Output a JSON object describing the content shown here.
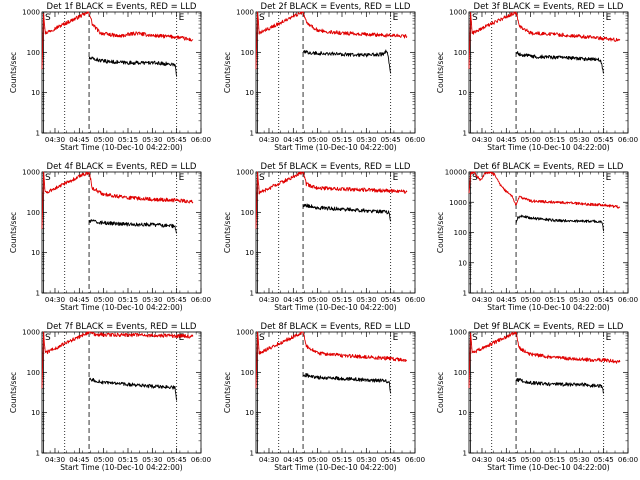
{
  "colors": {
    "events": "#000000",
    "lld": "#e00000",
    "frame": "#000000"
  },
  "x_ticks": [
    "04:30",
    "04:45",
    "05:00",
    "05:15",
    "05:30",
    "05:45",
    "06:00"
  ],
  "x_label": "Start Time (10-Dec-10 04:22:00)",
  "y_label": "Counts/sec",
  "markers": {
    "start": "S",
    "end": "E"
  },
  "chart_data": [
    {
      "type": "line",
      "title": "Det 1f BLACK = Events, RED = LLD",
      "y_scale": "log",
      "ylim": [
        1,
        1000
      ],
      "y_ticks": [
        "1",
        "10",
        "100",
        "1000"
      ],
      "x_range": [
        "04:22",
        "06:00"
      ],
      "vlines": {
        "dotted": [
          "04:36",
          "05:45"
        ],
        "dashed": [
          "04:51"
        ]
      },
      "series": [
        {
          "role": "lld",
          "x": [
            "04:22",
            "04:23",
            "04:24",
            "04:51",
            "04:53",
            "04:58",
            "05:10",
            "05:20",
            "05:30",
            "05:45",
            "05:55"
          ],
          "y": [
            40,
            1000,
            300,
            1000,
            500,
            300,
            250,
            300,
            260,
            240,
            200
          ]
        },
        {
          "role": "events",
          "x": [
            "04:51",
            "04:53",
            "05:00",
            "05:15",
            "05:30",
            "05:44",
            "05:45"
          ],
          "y": [
            70,
            70,
            60,
            55,
            55,
            50,
            25
          ]
        }
      ]
    },
    {
      "type": "line",
      "title": "Det 2f BLACK = Events, RED = LLD",
      "y_scale": "log",
      "ylim": [
        1,
        1000
      ],
      "y_ticks": [
        "1",
        "10",
        "100",
        "1000"
      ],
      "x_range": [
        "04:22",
        "06:00"
      ],
      "vlines": {
        "dotted": [
          "04:36",
          "05:45"
        ],
        "dashed": [
          "04:51"
        ]
      },
      "series": [
        {
          "role": "lld",
          "x": [
            "04:22",
            "04:23",
            "04:24",
            "04:51",
            "04:53",
            "05:00",
            "05:15",
            "05:30",
            "05:45",
            "05:55"
          ],
          "y": [
            40,
            1000,
            300,
            1000,
            550,
            350,
            300,
            280,
            260,
            250
          ]
        },
        {
          "role": "events",
          "x": [
            "04:51",
            "04:53",
            "05:00",
            "05:15",
            "05:30",
            "05:40",
            "05:43",
            "05:45"
          ],
          "y": [
            100,
            100,
            95,
            90,
            85,
            90,
            110,
            30
          ]
        }
      ]
    },
    {
      "type": "line",
      "title": "Det 3f BLACK = Events, RED = LLD",
      "y_scale": "log",
      "ylim": [
        1,
        1000
      ],
      "y_ticks": [
        "1",
        "10",
        "100",
        "1000"
      ],
      "x_range": [
        "04:22",
        "06:00"
      ],
      "vlines": {
        "dotted": [
          "04:36",
          "05:45"
        ],
        "dashed": [
          "04:51"
        ]
      },
      "series": [
        {
          "role": "lld",
          "x": [
            "04:22",
            "04:23",
            "04:24",
            "04:51",
            "04:53",
            "05:00",
            "05:15",
            "05:30",
            "05:45",
            "05:55"
          ],
          "y": [
            40,
            1000,
            300,
            1000,
            450,
            300,
            280,
            250,
            220,
            200
          ]
        },
        {
          "role": "events",
          "x": [
            "04:51",
            "04:53",
            "05:00",
            "05:15",
            "05:30",
            "05:43",
            "05:45"
          ],
          "y": [
            100,
            90,
            80,
            75,
            70,
            65,
            30
          ]
        }
      ]
    },
    {
      "type": "line",
      "title": "Det 4f BLACK = Events, RED = LLD",
      "y_scale": "log",
      "ylim": [
        1,
        1000
      ],
      "y_ticks": [
        "1",
        "10",
        "100",
        "1000"
      ],
      "x_range": [
        "04:22",
        "06:00"
      ],
      "vlines": {
        "dotted": [
          "04:36",
          "05:45"
        ],
        "dashed": [
          "04:51"
        ]
      },
      "series": [
        {
          "role": "lld",
          "x": [
            "04:22",
            "04:23",
            "04:24",
            "04:51",
            "04:53",
            "05:00",
            "05:15",
            "05:30",
            "05:45",
            "05:55"
          ],
          "y": [
            40,
            1000,
            300,
            1000,
            400,
            280,
            230,
            210,
            200,
            180
          ]
        },
        {
          "role": "events",
          "x": [
            "04:51",
            "04:53",
            "05:00",
            "05:15",
            "05:30",
            "05:44",
            "05:45"
          ],
          "y": [
            60,
            60,
            55,
            50,
            50,
            45,
            30
          ]
        }
      ]
    },
    {
      "type": "line",
      "title": "Det 5f BLACK = Events, RED = LLD",
      "y_scale": "log",
      "ylim": [
        1,
        1000
      ],
      "y_ticks": [
        "1",
        "10",
        "100",
        "1000"
      ],
      "x_range": [
        "04:22",
        "06:00"
      ],
      "vlines": {
        "dotted": [
          "04:36",
          "05:45"
        ],
        "dashed": [
          "04:51"
        ]
      },
      "series": [
        {
          "role": "lld",
          "x": [
            "04:22",
            "04:23",
            "04:24",
            "04:51",
            "04:53",
            "05:00",
            "05:15",
            "05:30",
            "05:45",
            "05:55"
          ],
          "y": [
            40,
            1000,
            300,
            1000,
            500,
            400,
            380,
            360,
            340,
            320
          ]
        },
        {
          "role": "events",
          "x": [
            "04:51",
            "04:53",
            "05:00",
            "05:15",
            "05:30",
            "05:44",
            "05:45"
          ],
          "y": [
            150,
            150,
            130,
            120,
            110,
            100,
            60
          ]
        }
      ]
    },
    {
      "type": "line",
      "title": "Det 6f BLACK = Events, RED = LLD",
      "y_scale": "log",
      "ylim": [
        1,
        10000
      ],
      "y_ticks": [
        "1",
        "10",
        "100",
        "1000",
        "10000"
      ],
      "x_range": [
        "04:22",
        "06:00"
      ],
      "vlines": {
        "dotted": [
          "04:36",
          "05:45"
        ],
        "dashed": [
          "04:51"
        ]
      },
      "series": [
        {
          "role": "lld",
          "x": [
            "04:22",
            "04:23",
            "04:25",
            "04:27",
            "04:29",
            "04:32",
            "04:35",
            "04:38",
            "04:41",
            "04:44",
            "04:47",
            "04:49",
            "04:51",
            "04:53",
            "05:00",
            "05:15",
            "05:30",
            "05:45",
            "05:55"
          ],
          "y": [
            2000,
            9000,
            10000,
            7000,
            5500,
            9000,
            10000,
            8000,
            4000,
            2500,
            1800,
            1500,
            800,
            1500,
            1100,
            1000,
            900,
            800,
            700
          ]
        },
        {
          "role": "events",
          "x": [
            "04:51",
            "04:52",
            "04:55",
            "05:00",
            "05:15",
            "05:30",
            "05:44",
            "05:45"
          ],
          "y": [
            200,
            300,
            350,
            300,
            250,
            240,
            230,
            110
          ]
        }
      ]
    },
    {
      "type": "line",
      "title": "Det 7f BLACK = Events, RED = LLD",
      "y_scale": "log",
      "ylim": [
        1,
        1000
      ],
      "y_ticks": [
        "1",
        "10",
        "100",
        "1000"
      ],
      "x_range": [
        "04:22",
        "06:00"
      ],
      "vlines": {
        "dotted": [
          "04:36",
          "05:45"
        ],
        "dashed": [
          "04:51"
        ]
      },
      "series": [
        {
          "role": "lld",
          "x": [
            "04:22",
            "04:23",
            "04:24",
            "04:51",
            "04:53",
            "05:00",
            "05:15",
            "05:30",
            "05:45",
            "05:55"
          ],
          "y": [
            40,
            1000,
            300,
            1000,
            900,
            850,
            850,
            820,
            800,
            780
          ]
        },
        {
          "role": "events",
          "x": [
            "04:51",
            "04:53",
            "05:00",
            "05:15",
            "05:30",
            "05:44",
            "05:45"
          ],
          "y": [
            65,
            65,
            55,
            50,
            45,
            42,
            20
          ]
        }
      ]
    },
    {
      "type": "line",
      "title": "Det 8f BLACK = Events, RED = LLD",
      "y_scale": "log",
      "ylim": [
        1,
        1000
      ],
      "y_ticks": [
        "1",
        "10",
        "100",
        "1000"
      ],
      "x_range": [
        "04:22",
        "06:00"
      ],
      "vlines": {
        "dotted": [
          "04:36",
          "05:45"
        ],
        "dashed": [
          "04:51"
        ]
      },
      "series": [
        {
          "role": "lld",
          "x": [
            "04:22",
            "04:23",
            "04:24",
            "04:51",
            "04:53",
            "05:00",
            "05:15",
            "05:30",
            "05:45",
            "05:55"
          ],
          "y": [
            40,
            1000,
            300,
            1000,
            450,
            300,
            260,
            240,
            220,
            200
          ]
        },
        {
          "role": "events",
          "x": [
            "04:51",
            "04:53",
            "05:00",
            "05:15",
            "05:30",
            "05:44",
            "05:45"
          ],
          "y": [
            85,
            85,
            75,
            70,
            65,
            60,
            30
          ]
        }
      ]
    },
    {
      "type": "line",
      "title": "Det 9f BLACK = Events, RED = LLD",
      "y_scale": "log",
      "ylim": [
        1,
        1000
      ],
      "y_ticks": [
        "1",
        "10",
        "100",
        "1000"
      ],
      "x_range": [
        "04:22",
        "06:00"
      ],
      "vlines": {
        "dotted": [
          "04:36",
          "05:45"
        ],
        "dashed": [
          "04:51"
        ]
      },
      "series": [
        {
          "role": "lld",
          "x": [
            "04:22",
            "04:23",
            "04:24",
            "04:51",
            "04:53",
            "05:00",
            "05:15",
            "05:30",
            "05:45",
            "05:55"
          ],
          "y": [
            40,
            1000,
            300,
            1000,
            400,
            280,
            230,
            210,
            200,
            180
          ]
        },
        {
          "role": "events",
          "x": [
            "04:51",
            "04:53",
            "05:00",
            "05:15",
            "05:30",
            "05:44",
            "05:45"
          ],
          "y": [
            65,
            65,
            55,
            50,
            50,
            45,
            30
          ]
        }
      ]
    }
  ]
}
